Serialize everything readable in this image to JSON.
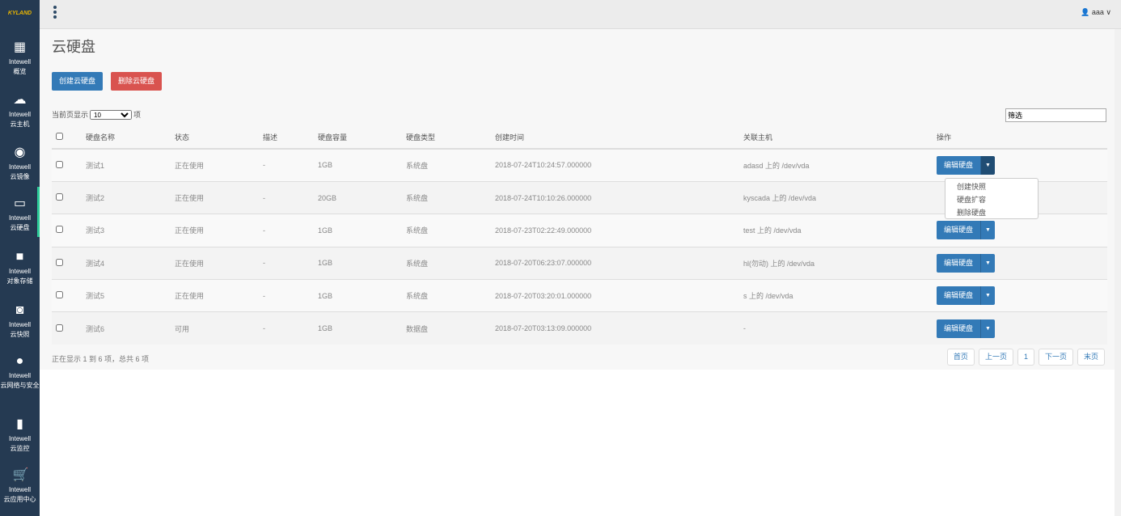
{
  "logo": "KYLAND",
  "sidebar": {
    "items": [
      {
        "brand": "Intewell",
        "label": "概览",
        "icon": "grid-icon"
      },
      {
        "brand": "Intewell",
        "label": "云主机",
        "icon": "cloud-icon"
      },
      {
        "brand": "Intewell",
        "label": "云镜像",
        "icon": "disc-icon"
      },
      {
        "brand": "Intewell",
        "label": "云硬盘",
        "icon": "hdd-icon",
        "active": true
      },
      {
        "brand": "Intewell",
        "label": "对象存储",
        "icon": "folder-icon"
      },
      {
        "brand": "Intewell",
        "label": "云快照",
        "icon": "camera-icon"
      },
      {
        "brand": "Intewell",
        "label": "云网络与安全",
        "icon": "globe-icon"
      },
      {
        "brand": "Intewell",
        "label": "云监控",
        "icon": "bar-chart-icon"
      },
      {
        "brand": "Intewell",
        "label": "云应用中心",
        "icon": "cart-icon"
      }
    ]
  },
  "header": {
    "user": "aaa"
  },
  "page": {
    "title": "云硬盘",
    "create": "创建云硬盘",
    "delete": "删除云硬盘",
    "len_prefix": "当前页显示",
    "len_value": "10",
    "len_suffix": "项",
    "filter": "筛选",
    "info": "正在显示 1 到 6 项，总共 6 项"
  },
  "table": {
    "headers": [
      "硬盘名称",
      "状态",
      "描述",
      "硬盘容量",
      "硬盘类型",
      "创建时间",
      "关联主机",
      "操作"
    ],
    "rows": [
      [
        "测试1",
        "正在使用",
        "-",
        "1GB",
        "系统盘",
        "2018-07-24T10:24:57.000000",
        "adasd 上的 /dev/vda"
      ],
      [
        "测试2",
        "正在使用",
        "-",
        "20GB",
        "系统盘",
        "2018-07-24T10:10:26.000000",
        "kyscada 上的 /dev/vda"
      ],
      [
        "测试3",
        "正在使用",
        "-",
        "1GB",
        "系统盘",
        "2018-07-23T02:22:49.000000",
        "test 上的 /dev/vda"
      ],
      [
        "测试4",
        "正在使用",
        "-",
        "1GB",
        "系统盘",
        "2018-07-20T06:23:07.000000",
        "hl(勿动) 上的 /dev/vda"
      ],
      [
        "测试5",
        "正在使用",
        "-",
        "1GB",
        "系统盘",
        "2018-07-20T03:20:01.000000",
        "s 上的 /dev/vda"
      ],
      [
        "测试6",
        "可用",
        "-",
        "1GB",
        "数据盘",
        "2018-07-20T03:13:09.000000",
        "-"
      ]
    ],
    "edit": "编辑硬盘"
  },
  "dropdown": [
    "创建快照",
    "硬盘扩容",
    "删除硬盘"
  ],
  "pager": [
    "首页",
    "上一页",
    "1",
    "下一页",
    "末页"
  ]
}
